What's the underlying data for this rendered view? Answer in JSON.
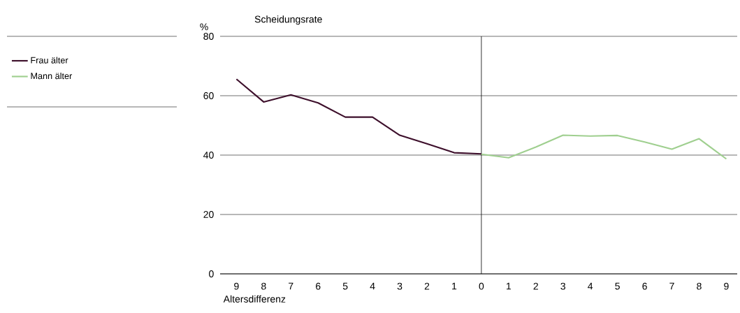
{
  "chart_data": {
    "type": "line",
    "title": "Scheidungsrate",
    "ylabel": "%",
    "xlabel": "Altersdifferenz",
    "categories": [
      "9",
      "8",
      "7",
      "6",
      "5",
      "4",
      "3",
      "2",
      "1",
      "0",
      "1",
      "2",
      "3",
      "4",
      "5",
      "6",
      "7",
      "8",
      "9"
    ],
    "ylim": [
      0,
      80
    ],
    "yticks": [
      0,
      20,
      40,
      60,
      80
    ],
    "grid": "y",
    "legend": "left",
    "ref_lines": [
      {
        "axis": "x",
        "value": "0",
        "color": "#000000"
      }
    ],
    "series": [
      {
        "name": "Frau älter",
        "color": "#3d0f2b",
        "values": [
          65.6,
          57.9,
          60.3,
          57.6,
          52.8,
          52.8,
          46.7,
          43.8,
          40.8,
          40.4,
          null,
          null,
          null,
          null,
          null,
          null,
          null,
          null,
          null
        ]
      },
      {
        "name": "Mann älter",
        "color": "#9fcf8f",
        "values": [
          null,
          null,
          null,
          null,
          null,
          null,
          null,
          null,
          null,
          40.3,
          39.1,
          42.7,
          46.7,
          46.4,
          46.6,
          44.4,
          42.0,
          45.5,
          38.7
        ]
      }
    ]
  }
}
